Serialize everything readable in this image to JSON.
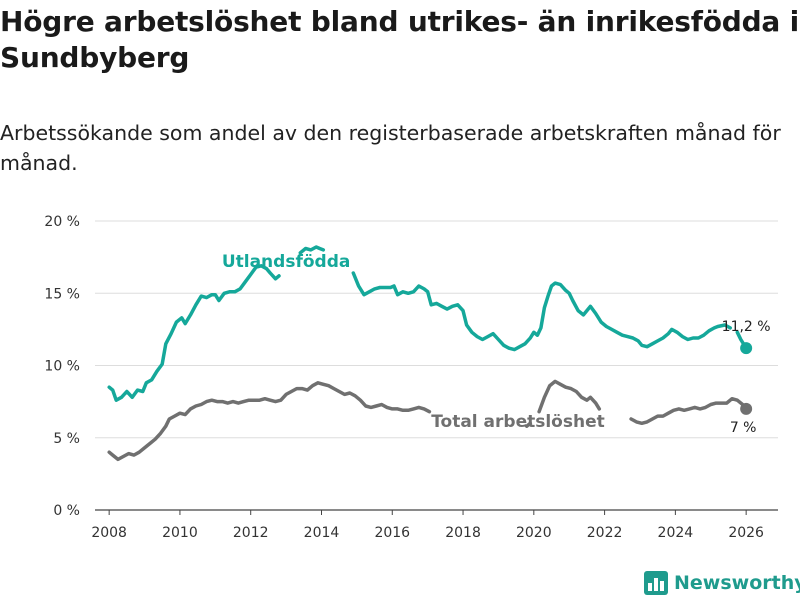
{
  "header": {
    "title": "Högre arbetslöshet bland utrikes- än inrikesfödda i Sundbyberg",
    "subtitle": "Arbetssökande som andel av den registerbaserade arbetskraften månad för månad."
  },
  "brand": {
    "name": "Newsworthy",
    "icon": "bar-chart-icon"
  },
  "colors": {
    "utlandsfodda": "#15a89a",
    "total": "#707070",
    "grid": "#dddddd"
  },
  "chart_data": {
    "type": "line",
    "title": "Högre arbetslöshet bland utrikes- än inrikesfödda i Sundbyberg",
    "subtitle": "Arbetssökande som andel av den registerbaserade arbetskraften månad för månad.",
    "xlabel": "",
    "ylabel": "",
    "xlim": [
      2007.6,
      2026.9
    ],
    "ylim": [
      0,
      20
    ],
    "grid": "horizontal",
    "x_ticks": [
      2008,
      2010,
      2012,
      2014,
      2016,
      2018,
      2020,
      2022,
      2024,
      2026
    ],
    "x_tick_labels": [
      "2008",
      "2010",
      "2012",
      "2014",
      "2016",
      "2018",
      "2020",
      "2022",
      "2024",
      "2026"
    ],
    "y_ticks": [
      0,
      5,
      10,
      15,
      20
    ],
    "y_tick_labels": [
      "0 %",
      "5 %",
      "10 %",
      "15 %",
      "20 %"
    ],
    "series": [
      {
        "name": "Utlandsfödda",
        "label": "Utlandsfödda",
        "end_label": "11,2 %",
        "end_value": 11.2,
        "segments": [
          [
            [
              2008.0,
              8.5
            ],
            [
              2008.1,
              8.3
            ],
            [
              2008.2,
              7.6
            ],
            [
              2008.35,
              7.8
            ],
            [
              2008.5,
              8.2
            ],
            [
              2008.65,
              7.8
            ],
            [
              2008.8,
              8.3
            ],
            [
              2008.95,
              8.2
            ],
            [
              2009.05,
              8.8
            ],
            [
              2009.2,
              9.0
            ],
            [
              2009.35,
              9.6
            ],
            [
              2009.5,
              10.1
            ],
            [
              2009.6,
              11.5
            ],
            [
              2009.75,
              12.2
            ],
            [
              2009.9,
              13.0
            ],
            [
              2010.05,
              13.3
            ],
            [
              2010.15,
              12.9
            ],
            [
              2010.3,
              13.5
            ],
            [
              2010.45,
              14.2
            ],
            [
              2010.6,
              14.8
            ],
            [
              2010.75,
              14.7
            ],
            [
              2010.9,
              14.9
            ],
            [
              2011.0,
              14.9
            ],
            [
              2011.1,
              14.5
            ],
            [
              2011.25,
              15.0
            ],
            [
              2011.4,
              15.1
            ],
            [
              2011.55,
              15.1
            ],
            [
              2011.7,
              15.3
            ],
            [
              2011.85,
              15.8
            ],
            [
              2012.0,
              16.3
            ],
            [
              2012.15,
              16.8
            ],
            [
              2012.3,
              16.9
            ],
            [
              2012.45,
              16.7
            ],
            [
              2012.55,
              16.4
            ],
            [
              2012.7,
              16.0
            ],
            [
              2012.8,
              16.2
            ]
          ],
          [
            [
              2013.4,
              17.8
            ],
            [
              2013.55,
              18.1
            ],
            [
              2013.7,
              18.0
            ],
            [
              2013.85,
              18.2
            ],
            [
              2013.95,
              18.1
            ],
            [
              2014.05,
              18.0
            ]
          ],
          [
            [
              2014.9,
              16.4
            ],
            [
              2015.05,
              15.5
            ],
            [
              2015.2,
              14.9
            ],
            [
              2015.35,
              15.1
            ],
            [
              2015.5,
              15.3
            ],
            [
              2015.65,
              15.4
            ],
            [
              2015.8,
              15.4
            ],
            [
              2015.95,
              15.4
            ],
            [
              2016.05,
              15.5
            ],
            [
              2016.15,
              14.9
            ],
            [
              2016.3,
              15.1
            ],
            [
              2016.45,
              15.0
            ],
            [
              2016.6,
              15.1
            ],
            [
              2016.75,
              15.5
            ],
            [
              2016.9,
              15.3
            ],
            [
              2017.0,
              15.1
            ],
            [
              2017.1,
              14.2
            ],
            [
              2017.25,
              14.3
            ],
            [
              2017.4,
              14.1
            ],
            [
              2017.55,
              13.9
            ],
            [
              2017.7,
              14.1
            ],
            [
              2017.85,
              14.2
            ],
            [
              2018.0,
              13.8
            ],
            [
              2018.1,
              12.8
            ],
            [
              2018.25,
              12.3
            ],
            [
              2018.4,
              12.0
            ],
            [
              2018.55,
              11.8
            ],
            [
              2018.7,
              12.0
            ],
            [
              2018.85,
              12.2
            ],
            [
              2019.0,
              11.8
            ],
            [
              2019.15,
              11.4
            ],
            [
              2019.3,
              11.2
            ],
            [
              2019.45,
              11.1
            ],
            [
              2019.6,
              11.3
            ],
            [
              2019.75,
              11.5
            ],
            [
              2019.9,
              11.9
            ],
            [
              2020.0,
              12.3
            ],
            [
              2020.1,
              12.1
            ],
            [
              2020.2,
              12.6
            ],
            [
              2020.3,
              14.0
            ],
            [
              2020.4,
              14.8
            ],
            [
              2020.5,
              15.5
            ],
            [
              2020.6,
              15.7
            ],
            [
              2020.75,
              15.6
            ],
            [
              2020.9,
              15.2
            ],
            [
              2021.0,
              15.0
            ],
            [
              2021.1,
              14.5
            ],
            [
              2021.25,
              13.8
            ],
            [
              2021.4,
              13.5
            ],
            [
              2021.5,
              13.8
            ],
            [
              2021.6,
              14.1
            ],
            [
              2021.75,
              13.6
            ],
            [
              2021.9,
              13.0
            ],
            [
              2022.05,
              12.7
            ],
            [
              2022.2,
              12.5
            ],
            [
              2022.35,
              12.3
            ],
            [
              2022.5,
              12.1
            ],
            [
              2022.65,
              12.0
            ],
            [
              2022.8,
              11.9
            ],
            [
              2022.95,
              11.7
            ],
            [
              2023.05,
              11.4
            ],
            [
              2023.2,
              11.3
            ],
            [
              2023.35,
              11.5
            ],
            [
              2023.5,
              11.7
            ],
            [
              2023.65,
              11.9
            ],
            [
              2023.8,
              12.2
            ],
            [
              2023.9,
              12.5
            ],
            [
              2024.05,
              12.3
            ],
            [
              2024.2,
              12.0
            ],
            [
              2024.35,
              11.8
            ],
            [
              2024.5,
              11.9
            ],
            [
              2024.65,
              11.9
            ],
            [
              2024.8,
              12.1
            ],
            [
              2024.95,
              12.4
            ],
            [
              2025.1,
              12.6
            ],
            [
              2025.2,
              12.7
            ],
            [
              2025.4,
              12.8
            ],
            [
              2025.55,
              12.6
            ]
          ],
          [
            [
              2025.75,
              12.3
            ],
            [
              2025.85,
              11.8
            ],
            [
              2026.0,
              11.2
            ]
          ]
        ]
      },
      {
        "name": "Total arbetslöshet",
        "label": "Total arbetslöshet",
        "end_label": "7 %",
        "end_value": 7.0,
        "segments": [
          [
            [
              2008.0,
              4.0
            ],
            [
              2008.1,
              3.8
            ],
            [
              2008.25,
              3.5
            ],
            [
              2008.4,
              3.7
            ],
            [
              2008.55,
              3.9
            ],
            [
              2008.7,
              3.8
            ],
            [
              2008.85,
              4.0
            ],
            [
              2009.0,
              4.3
            ],
            [
              2009.15,
              4.6
            ],
            [
              2009.3,
              4.9
            ],
            [
              2009.45,
              5.3
            ],
            [
              2009.6,
              5.8
            ],
            [
              2009.7,
              6.3
            ],
            [
              2009.85,
              6.5
            ],
            [
              2010.0,
              6.7
            ],
            [
              2010.15,
              6.6
            ],
            [
              2010.3,
              7.0
            ],
            [
              2010.45,
              7.2
            ],
            [
              2010.6,
              7.3
            ],
            [
              2010.75,
              7.5
            ],
            [
              2010.9,
              7.6
            ],
            [
              2011.05,
              7.5
            ],
            [
              2011.2,
              7.5
            ],
            [
              2011.35,
              7.4
            ],
            [
              2011.5,
              7.5
            ],
            [
              2011.65,
              7.4
            ],
            [
              2011.8,
              7.5
            ],
            [
              2011.95,
              7.6
            ],
            [
              2012.1,
              7.6
            ],
            [
              2012.25,
              7.6
            ],
            [
              2012.4,
              7.7
            ],
            [
              2012.55,
              7.6
            ],
            [
              2012.7,
              7.5
            ],
            [
              2012.85,
              7.6
            ],
            [
              2013.0,
              8.0
            ],
            [
              2013.15,
              8.2
            ],
            [
              2013.3,
              8.4
            ],
            [
              2013.45,
              8.4
            ],
            [
              2013.6,
              8.3
            ],
            [
              2013.75,
              8.6
            ],
            [
              2013.9,
              8.8
            ],
            [
              2014.05,
              8.7
            ],
            [
              2014.2,
              8.6
            ],
            [
              2014.35,
              8.4
            ],
            [
              2014.5,
              8.2
            ],
            [
              2014.65,
              8.0
            ],
            [
              2014.8,
              8.1
            ],
            [
              2014.95,
              7.9
            ],
            [
              2015.1,
              7.6
            ],
            [
              2015.25,
              7.2
            ],
            [
              2015.4,
              7.1
            ],
            [
              2015.55,
              7.2
            ],
            [
              2015.7,
              7.3
            ],
            [
              2015.85,
              7.1
            ],
            [
              2016.0,
              7.0
            ],
            [
              2016.15,
              7.0
            ],
            [
              2016.3,
              6.9
            ],
            [
              2016.45,
              6.9
            ],
            [
              2016.6,
              7.0
            ],
            [
              2016.75,
              7.1
            ],
            [
              2016.9,
              7.0
            ],
            [
              2017.05,
              6.8
            ]
          ],
          [
            [
              2019.8,
              5.8
            ],
            [
              2019.9,
              6.0
            ]
          ],
          [
            [
              2020.15,
              6.8
            ],
            [
              2020.3,
              7.8
            ],
            [
              2020.45,
              8.6
            ],
            [
              2020.6,
              8.9
            ],
            [
              2020.75,
              8.7
            ],
            [
              2020.9,
              8.5
            ],
            [
              2021.05,
              8.4
            ],
            [
              2021.2,
              8.2
            ],
            [
              2021.35,
              7.8
            ],
            [
              2021.5,
              7.6
            ],
            [
              2021.6,
              7.8
            ],
            [
              2021.75,
              7.4
            ],
            [
              2021.85,
              7.0
            ]
          ],
          [
            [
              2022.75,
              6.3
            ],
            [
              2022.9,
              6.1
            ],
            [
              2023.05,
              6.0
            ],
            [
              2023.2,
              6.1
            ],
            [
              2023.35,
              6.3
            ],
            [
              2023.5,
              6.5
            ],
            [
              2023.65,
              6.5
            ],
            [
              2023.8,
              6.7
            ],
            [
              2023.95,
              6.9
            ],
            [
              2024.1,
              7.0
            ],
            [
              2024.25,
              6.9
            ],
            [
              2024.4,
              7.0
            ],
            [
              2024.55,
              7.1
            ],
            [
              2024.7,
              7.0
            ],
            [
              2024.85,
              7.1
            ],
            [
              2025.0,
              7.3
            ],
            [
              2025.15,
              7.4
            ],
            [
              2025.3,
              7.4
            ],
            [
              2025.45,
              7.4
            ],
            [
              2025.6,
              7.7
            ],
            [
              2025.75,
              7.6
            ],
            [
              2025.9,
              7.3
            ],
            [
              2026.0,
              7.0
            ]
          ]
        ]
      }
    ]
  }
}
